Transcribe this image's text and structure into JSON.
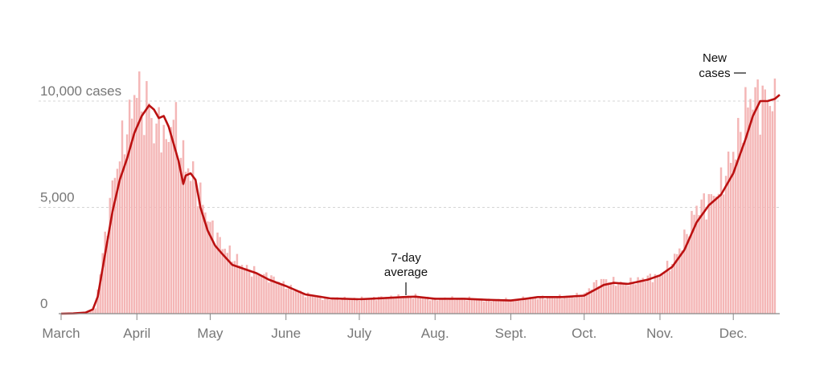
{
  "chart_data": {
    "type": "bar",
    "title": "",
    "xlabel": "",
    "ylabel": "",
    "ylim": [
      0,
      12500
    ],
    "grid": true,
    "y_ticks": [
      {
        "value": 0,
        "label": "0"
      },
      {
        "value": 5000,
        "label": "5,000"
      },
      {
        "value": 10000,
        "label": "10,000 cases"
      }
    ],
    "x_ticks": [
      {
        "day": 0,
        "label": "March"
      },
      {
        "day": 31,
        "label": "April"
      },
      {
        "day": 61,
        "label": "May"
      },
      {
        "day": 92,
        "label": "June"
      },
      {
        "day": 122,
        "label": "July"
      },
      {
        "day": 153,
        "label": "Aug."
      },
      {
        "day": 184,
        "label": "Sept."
      },
      {
        "day": 214,
        "label": "Oct."
      },
      {
        "day": 245,
        "label": "Nov."
      },
      {
        "day": 275,
        "label": "Dec."
      }
    ],
    "bar_color": "#f4b6b6",
    "line_color": "#bb1111",
    "series": [
      {
        "name": "New cases",
        "type": "bar",
        "anchors": [
          [
            0,
            0
          ],
          [
            5,
            20
          ],
          [
            10,
            60
          ],
          [
            14,
            250
          ],
          [
            16,
            2000
          ],
          [
            18,
            3500
          ],
          [
            21,
            6000
          ],
          [
            24,
            7500
          ],
          [
            27,
            8800
          ],
          [
            29,
            9500
          ],
          [
            31,
            11000
          ],
          [
            33,
            9500
          ],
          [
            36,
            10000
          ],
          [
            38,
            8500
          ],
          [
            41,
            9000
          ],
          [
            43,
            7800
          ],
          [
            46,
            9500
          ],
          [
            48,
            8000
          ],
          [
            51,
            7000
          ],
          [
            54,
            6500
          ],
          [
            57,
            5500
          ],
          [
            61,
            4200
          ],
          [
            66,
            3200
          ],
          [
            71,
            2600
          ],
          [
            76,
            2100
          ],
          [
            81,
            1900
          ],
          [
            86,
            1700
          ],
          [
            92,
            1300
          ],
          [
            100,
            900
          ],
          [
            110,
            700
          ],
          [
            122,
            700
          ],
          [
            135,
            780
          ],
          [
            145,
            820
          ],
          [
            153,
            700
          ],
          [
            165,
            720
          ],
          [
            175,
            650
          ],
          [
            184,
            650
          ],
          [
            195,
            780
          ],
          [
            205,
            780
          ],
          [
            214,
            900
          ],
          [
            218,
            1400
          ],
          [
            222,
            1600
          ],
          [
            230,
            1400
          ],
          [
            240,
            1700
          ],
          [
            245,
            1800
          ],
          [
            250,
            2400
          ],
          [
            255,
            3500
          ],
          [
            260,
            5000
          ],
          [
            265,
            5300
          ],
          [
            270,
            6000
          ],
          [
            273,
            7000
          ],
          [
            277,
            8200
          ],
          [
            280,
            9600
          ],
          [
            283,
            10300
          ],
          [
            286,
            10000
          ],
          [
            289,
            10200
          ],
          [
            292,
            9700
          ]
        ]
      },
      {
        "name": "7-day average",
        "type": "line",
        "points": [
          [
            0,
            0
          ],
          [
            5,
            10
          ],
          [
            10,
            50
          ],
          [
            13,
            200
          ],
          [
            15,
            800
          ],
          [
            18,
            2800
          ],
          [
            21,
            4800
          ],
          [
            24,
            6300
          ],
          [
            27,
            7300
          ],
          [
            30,
            8500
          ],
          [
            33,
            9300
          ],
          [
            36,
            9800
          ],
          [
            38,
            9600
          ],
          [
            40,
            9200
          ],
          [
            42,
            9300
          ],
          [
            44,
            8800
          ],
          [
            46,
            8000
          ],
          [
            48,
            7200
          ],
          [
            50,
            6100
          ],
          [
            51,
            6500
          ],
          [
            53,
            6600
          ],
          [
            55,
            6300
          ],
          [
            57,
            5000
          ],
          [
            60,
            3900
          ],
          [
            63,
            3200
          ],
          [
            66,
            2800
          ],
          [
            70,
            2300
          ],
          [
            75,
            2100
          ],
          [
            80,
            1900
          ],
          [
            85,
            1600
          ],
          [
            92,
            1300
          ],
          [
            100,
            900
          ],
          [
            110,
            720
          ],
          [
            122,
            680
          ],
          [
            130,
            720
          ],
          [
            140,
            780
          ],
          [
            145,
            800
          ],
          [
            153,
            700
          ],
          [
            165,
            700
          ],
          [
            175,
            650
          ],
          [
            184,
            620
          ],
          [
            190,
            700
          ],
          [
            195,
            780
          ],
          [
            205,
            780
          ],
          [
            214,
            850
          ],
          [
            218,
            1100
          ],
          [
            222,
            1350
          ],
          [
            226,
            1450
          ],
          [
            232,
            1400
          ],
          [
            240,
            1600
          ],
          [
            245,
            1800
          ],
          [
            250,
            2200
          ],
          [
            255,
            3000
          ],
          [
            260,
            4300
          ],
          [
            265,
            5100
          ],
          [
            270,
            5600
          ],
          [
            275,
            6600
          ],
          [
            280,
            8200
          ],
          [
            283,
            9300
          ],
          [
            286,
            10000
          ],
          [
            289,
            10000
          ],
          [
            292,
            10100
          ],
          [
            294,
            10300
          ]
        ]
      }
    ],
    "annotations": [
      {
        "lines": [
          "7-day",
          "average"
        ],
        "day": 144
      },
      {
        "lines": [
          "New",
          "cases"
        ],
        "day": 276
      }
    ]
  }
}
